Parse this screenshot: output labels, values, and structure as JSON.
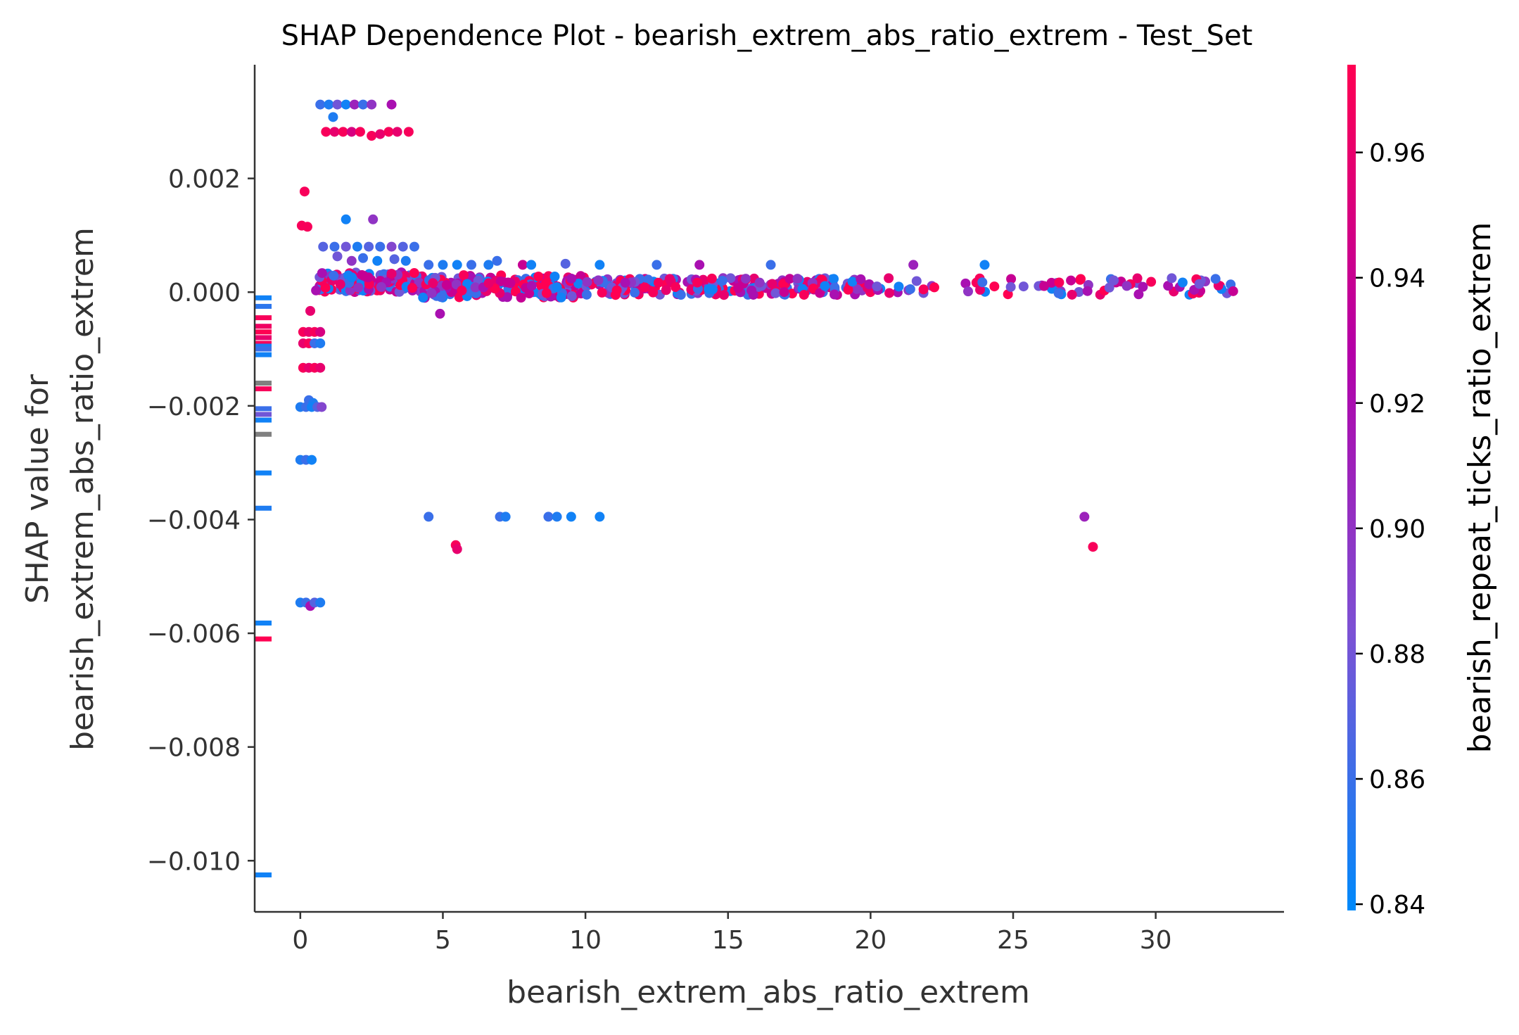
{
  "chart_data": {
    "type": "scatter",
    "title": "SHAP Dependence Plot - bearish_extrem_abs_ratio_extrem - Test_Set",
    "xlabel": "bearish_extrem_abs_ratio_extrem",
    "ylabel_line1": "SHAP value for",
    "ylabel_line2": "bearish_extrem_abs_ratio_extrem",
    "colorbar_label": "bearish_repeat_ticks_ratio_extrem",
    "xlim": [
      -1.6,
      34.5
    ],
    "ylim": [
      -0.0109,
      0.004
    ],
    "x_ticks": [
      0,
      5,
      10,
      15,
      20,
      25,
      30
    ],
    "x_tick_labels": [
      "0",
      "5",
      "10",
      "15",
      "20",
      "25",
      "30"
    ],
    "y_ticks": [
      0.002,
      0.0,
      -0.002,
      -0.004,
      -0.006,
      -0.008,
      -0.01
    ],
    "y_tick_labels": [
      "0.002",
      "0.000",
      "−0.002",
      "−0.004",
      "−0.006",
      "−0.008",
      "−0.010"
    ],
    "colorbar_range": [
      0.839,
      0.974
    ],
    "colorbar_ticks": [
      0.84,
      0.86,
      0.88,
      0.9,
      0.92,
      0.94,
      0.96
    ],
    "colorbar_tick_labels": [
      "0.84",
      "0.86",
      "0.88",
      "0.90",
      "0.92",
      "0.94",
      "0.96"
    ],
    "colormap": [
      "#008afb",
      "#7c51d4",
      "#b400a8",
      "#ff0052"
    ],
    "missing_color": "#808080",
    "grid": false,
    "nan_markers": [
      {
        "y": -0.0001,
        "c": 0.845
      },
      {
        "y": -0.00025,
        "c": 0.855
      },
      {
        "y": -0.00045,
        "c": 0.97
      },
      {
        "y": -0.0006,
        "c": 0.965
      },
      {
        "y": -0.0007,
        "c": 0.975
      },
      {
        "y": -0.0008,
        "c": 0.96
      },
      {
        "y": -0.0009,
        "c": 0.97
      },
      {
        "y": -0.00095,
        "c": 0.85
      },
      {
        "y": -0.001,
        "c": 0.86
      },
      {
        "y": -0.0011,
        "c": 0.845
      },
      {
        "y": -0.0016,
        "c": null
      },
      {
        "y": -0.0017,
        "c": 0.97
      },
      {
        "y": -0.00205,
        "c": 0.86
      },
      {
        "y": -0.00215,
        "c": 0.88
      },
      {
        "y": -0.00225,
        "c": 0.845
      },
      {
        "y": -0.0025,
        "c": null
      },
      {
        "y": -0.00318,
        "c": 0.845
      },
      {
        "y": -0.0038,
        "c": 0.85
      },
      {
        "y": -0.00582,
        "c": 0.845
      },
      {
        "y": -0.0061,
        "c": 0.975
      },
      {
        "y": -0.01025,
        "c": 0.845
      }
    ],
    "points": [
      {
        "x": 0.05,
        "y": 0.00117,
        "c": 0.97
      },
      {
        "x": 0.25,
        "y": 0.00115,
        "c": 0.97
      },
      {
        "x": 0.15,
        "y": 0.00177,
        "c": 0.97
      },
      {
        "x": 0.35,
        "y": -0.00033,
        "c": 0.96
      },
      {
        "x": 0.55,
        "y": 3e-05,
        "c": 0.92
      },
      {
        "x": 0.1,
        "y": -0.0007,
        "c": 0.97
      },
      {
        "x": 0.3,
        "y": -0.0007,
        "c": 0.96
      },
      {
        "x": 0.5,
        "y": -0.0007,
        "c": 0.97
      },
      {
        "x": 0.7,
        "y": -0.0007,
        "c": 0.95
      },
      {
        "x": 0.1,
        "y": -0.0009,
        "c": 0.96
      },
      {
        "x": 0.3,
        "y": -0.0009,
        "c": 0.97
      },
      {
        "x": 0.5,
        "y": -0.0009,
        "c": 0.86
      },
      {
        "x": 0.7,
        "y": -0.0009,
        "c": 0.85
      },
      {
        "x": 0.1,
        "y": -0.00133,
        "c": 0.97
      },
      {
        "x": 0.3,
        "y": -0.00133,
        "c": 0.96
      },
      {
        "x": 0.5,
        "y": -0.00133,
        "c": 0.97
      },
      {
        "x": 0.7,
        "y": -0.00133,
        "c": 0.96
      },
      {
        "x": 0.3,
        "y": -0.0019,
        "c": 0.86
      },
      {
        "x": 0.45,
        "y": -0.00195,
        "c": 0.85
      },
      {
        "x": 0.0,
        "y": -0.00202,
        "c": 0.85
      },
      {
        "x": 0.2,
        "y": -0.00202,
        "c": 0.86
      },
      {
        "x": 0.4,
        "y": -0.00202,
        "c": 0.845
      },
      {
        "x": 0.6,
        "y": -0.00202,
        "c": 0.87
      },
      {
        "x": 0.75,
        "y": -0.00202,
        "c": 0.89
      },
      {
        "x": 0.0,
        "y": -0.00295,
        "c": 0.85
      },
      {
        "x": 0.2,
        "y": -0.00295,
        "c": 0.86
      },
      {
        "x": 0.4,
        "y": -0.00295,
        "c": 0.845
      },
      {
        "x": 0.0,
        "y": -0.00546,
        "c": 0.85
      },
      {
        "x": 0.2,
        "y": -0.00546,
        "c": 0.86
      },
      {
        "x": 0.35,
        "y": -0.00552,
        "c": 0.92
      },
      {
        "x": 0.5,
        "y": -0.00546,
        "c": 0.87
      },
      {
        "x": 0.7,
        "y": -0.00546,
        "c": 0.85
      },
      {
        "x": 0.7,
        "y": 0.0033,
        "c": 0.86
      },
      {
        "x": 1.0,
        "y": 0.0033,
        "c": 0.85
      },
      {
        "x": 1.3,
        "y": 0.0033,
        "c": 0.88
      },
      {
        "x": 1.6,
        "y": 0.0033,
        "c": 0.845
      },
      {
        "x": 1.9,
        "y": 0.0033,
        "c": 0.91
      },
      {
        "x": 2.2,
        "y": 0.0033,
        "c": 0.86
      },
      {
        "x": 2.5,
        "y": 0.0033,
        "c": 0.9
      },
      {
        "x": 3.2,
        "y": 0.0033,
        "c": 0.92
      },
      {
        "x": 1.15,
        "y": 0.00308,
        "c": 0.85
      },
      {
        "x": 0.9,
        "y": 0.00282,
        "c": 0.97
      },
      {
        "x": 1.2,
        "y": 0.00282,
        "c": 0.96
      },
      {
        "x": 1.5,
        "y": 0.00282,
        "c": 0.97
      },
      {
        "x": 1.8,
        "y": 0.00282,
        "c": 0.95
      },
      {
        "x": 2.1,
        "y": 0.00282,
        "c": 0.97
      },
      {
        "x": 2.5,
        "y": 0.00275,
        "c": 0.97
      },
      {
        "x": 2.8,
        "y": 0.00278,
        "c": 0.96
      },
      {
        "x": 3.1,
        "y": 0.00282,
        "c": 0.97
      },
      {
        "x": 3.4,
        "y": 0.00282,
        "c": 0.96
      },
      {
        "x": 3.8,
        "y": 0.00282,
        "c": 0.97
      },
      {
        "x": 1.6,
        "y": 0.00128,
        "c": 0.845
      },
      {
        "x": 2.55,
        "y": 0.00128,
        "c": 0.9
      },
      {
        "x": 0.8,
        "y": 0.0008,
        "c": 0.87
      },
      {
        "x": 1.2,
        "y": 0.0008,
        "c": 0.86
      },
      {
        "x": 1.6,
        "y": 0.0008,
        "c": 0.88
      },
      {
        "x": 2.0,
        "y": 0.0008,
        "c": 0.85
      },
      {
        "x": 2.4,
        "y": 0.0008,
        "c": 0.87
      },
      {
        "x": 2.8,
        "y": 0.0008,
        "c": 0.86
      },
      {
        "x": 3.2,
        "y": 0.0008,
        "c": 0.89
      },
      {
        "x": 3.6,
        "y": 0.0008,
        "c": 0.87
      },
      {
        "x": 4.0,
        "y": 0.0008,
        "c": 0.86
      },
      {
        "x": 1.3,
        "y": 0.00063,
        "c": 0.88
      },
      {
        "x": 1.8,
        "y": 0.00055,
        "c": 0.9
      },
      {
        "x": 2.2,
        "y": 0.0006,
        "c": 0.86
      },
      {
        "x": 2.7,
        "y": 0.00055,
        "c": 0.845
      },
      {
        "x": 3.3,
        "y": 0.00058,
        "c": 0.87
      },
      {
        "x": 3.7,
        "y": 0.00055,
        "c": 0.85
      },
      {
        "x": 4.5,
        "y": 0.00048,
        "c": 0.86
      },
      {
        "x": 5.0,
        "y": 0.00048,
        "c": 0.85
      },
      {
        "x": 5.5,
        "y": 0.00048,
        "c": 0.845
      },
      {
        "x": 6.0,
        "y": 0.00048,
        "c": 0.86
      },
      {
        "x": 6.6,
        "y": 0.00048,
        "c": 0.85
      },
      {
        "x": 6.9,
        "y": 0.00055,
        "c": 0.86
      },
      {
        "x": 7.8,
        "y": 0.00048,
        "c": 0.94
      },
      {
        "x": 8.1,
        "y": 0.00048,
        "c": 0.845
      },
      {
        "x": 9.3,
        "y": 0.0005,
        "c": 0.87
      },
      {
        "x": 10.5,
        "y": 0.00048,
        "c": 0.845
      },
      {
        "x": 12.5,
        "y": 0.00048,
        "c": 0.86
      },
      {
        "x": 14.0,
        "y": 0.00048,
        "c": 0.92
      },
      {
        "x": 16.5,
        "y": 0.00048,
        "c": 0.86
      },
      {
        "x": 21.5,
        "y": 0.00048,
        "c": 0.91
      },
      {
        "x": 24.0,
        "y": 0.00048,
        "c": 0.845
      },
      {
        "x": 4.9,
        "y": -0.00038,
        "c": 0.92
      },
      {
        "x": 4.5,
        "y": -0.00395,
        "c": 0.86
      },
      {
        "x": 7.0,
        "y": -0.00395,
        "c": 0.86
      },
      {
        "x": 7.2,
        "y": -0.00395,
        "c": 0.85
      },
      {
        "x": 8.7,
        "y": -0.00395,
        "c": 0.86
      },
      {
        "x": 9.0,
        "y": -0.00395,
        "c": 0.85
      },
      {
        "x": 9.5,
        "y": -0.00395,
        "c": 0.845
      },
      {
        "x": 10.5,
        "y": -0.00395,
        "c": 0.845
      },
      {
        "x": 5.45,
        "y": -0.00445,
        "c": 0.97
      },
      {
        "x": 5.5,
        "y": -0.00452,
        "c": 0.96
      },
      {
        "x": 27.5,
        "y": -0.00395,
        "c": 0.91
      },
      {
        "x": 27.8,
        "y": -0.00448,
        "c": 0.97
      }
    ],
    "bands": [
      {
        "x0": 0.65,
        "x1": 4.3,
        "y0": 0.0,
        "y1": 0.00035,
        "n": 160
      },
      {
        "x0": 4.3,
        "x1": 10.0,
        "y0": -0.0001,
        "y1": 0.0003,
        "n": 170
      },
      {
        "x0": 10.0,
        "x1": 20.0,
        "y0": -5e-05,
        "y1": 0.00025,
        "n": 230
      },
      {
        "x0": 20.0,
        "x1": 33.0,
        "y0": -5e-05,
        "y1": 0.00025,
        "n": 80
      }
    ]
  }
}
